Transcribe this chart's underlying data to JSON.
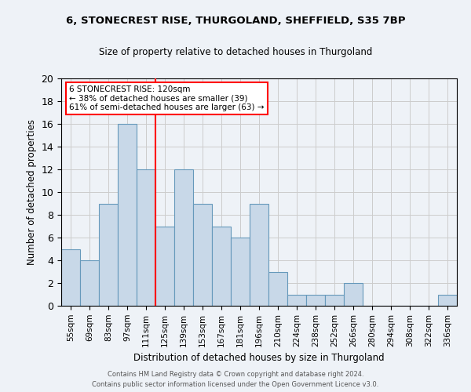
{
  "title1": "6, STONECREST RISE, THURGOLAND, SHEFFIELD, S35 7BP",
  "title2": "Size of property relative to detached houses in Thurgoland",
  "xlabel": "Distribution of detached houses by size in Thurgoland",
  "ylabel": "Number of detached properties",
  "bar_labels": [
    "55sqm",
    "69sqm",
    "83sqm",
    "97sqm",
    "111sqm",
    "125sqm",
    "139sqm",
    "153sqm",
    "167sqm",
    "181sqm",
    "196sqm",
    "210sqm",
    "224sqm",
    "238sqm",
    "252sqm",
    "266sqm",
    "280sqm",
    "294sqm",
    "308sqm",
    "322sqm",
    "336sqm"
  ],
  "bar_values": [
    5,
    4,
    9,
    16,
    12,
    7,
    12,
    9,
    7,
    6,
    9,
    3,
    1,
    1,
    1,
    2,
    0,
    0,
    0,
    0,
    1
  ],
  "bar_color": "#c8d8e8",
  "bar_edge_color": "#6699bb",
  "vline_x": 4.5,
  "vline_color": "red",
  "annotation_title": "6 STONECREST RISE: 120sqm",
  "annotation_line1": "← 38% of detached houses are smaller (39)",
  "annotation_line2": "61% of semi-detached houses are larger (63) →",
  "annotation_box_color": "white",
  "annotation_box_edge": "red",
  "ylim": [
    0,
    20
  ],
  "yticks": [
    0,
    2,
    4,
    6,
    8,
    10,
    12,
    14,
    16,
    18,
    20
  ],
  "footer1": "Contains HM Land Registry data © Crown copyright and database right 2024.",
  "footer2": "Contains public sector information licensed under the Open Government Licence v3.0.",
  "bg_color": "#eef2f7",
  "grid_color": "#cccccc"
}
